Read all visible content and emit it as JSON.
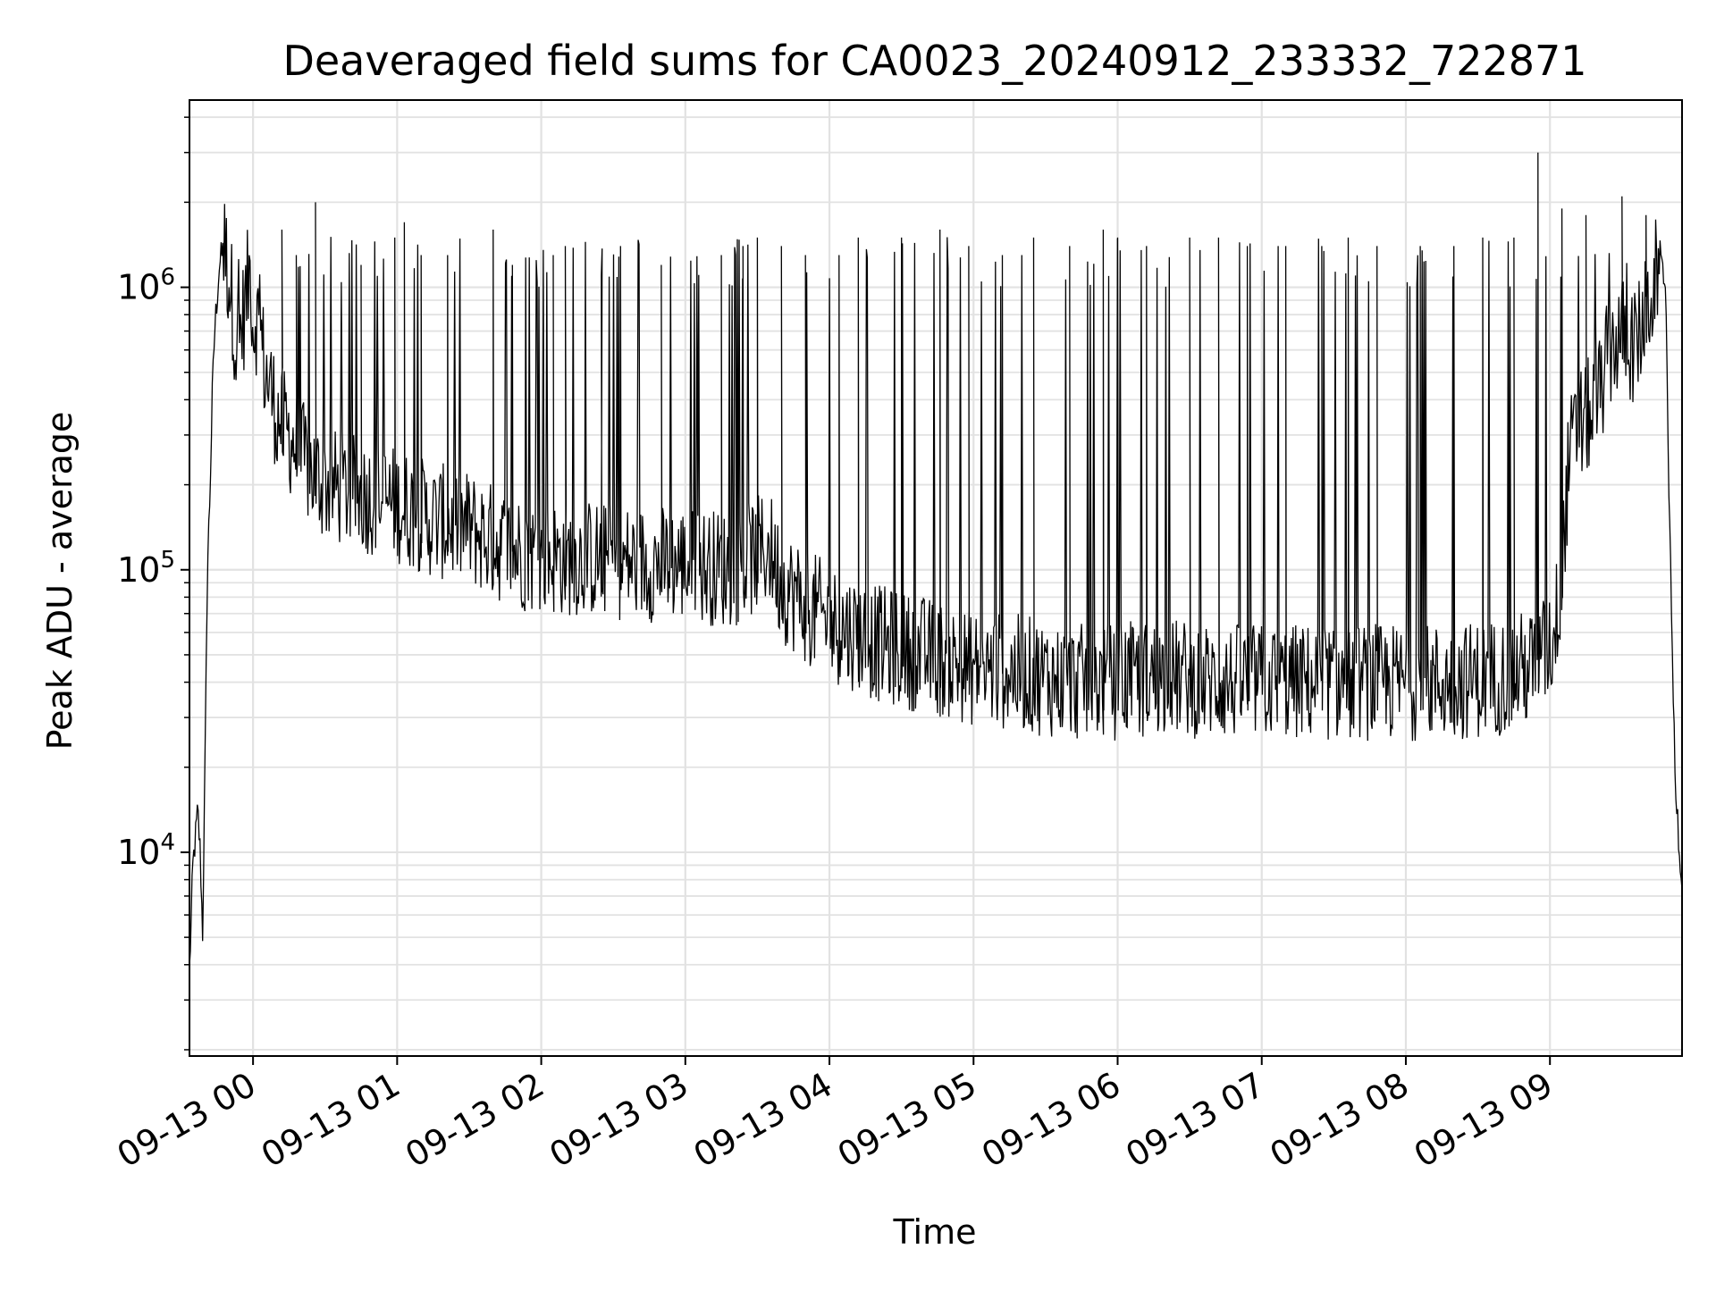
{
  "chart_data": {
    "type": "line",
    "title": "Deaveraged field sums for CA0023_20240912_233332_722871",
    "xlabel": "Time",
    "ylabel": "Peak ADU - average",
    "yscale": "log",
    "x_range": [
      "2024-09-12 23:33:32",
      "2024-09-13 09:55:00"
    ],
    "ylim": [
      1900,
      4600000
    ],
    "x_ticks": [
      "09-13 00",
      "09-13 01",
      "09-13 02",
      "09-13 03",
      "09-13 04",
      "09-13 05",
      "09-13 06",
      "09-13 07",
      "09-13 08",
      "09-13 09"
    ],
    "x_tick_times": [
      "2024-09-13 00:00",
      "2024-09-13 01:00",
      "2024-09-13 02:00",
      "2024-09-13 03:00",
      "2024-09-13 04:00",
      "2024-09-13 05:00",
      "2024-09-13 06:00",
      "2024-09-13 07:00",
      "2024-09-13 08:00",
      "2024-09-13 09:00"
    ],
    "y_ticks": [
      {
        "value": 10000,
        "base": "10",
        "exp": "4"
      },
      {
        "value": 100000,
        "base": "10",
        "exp": "5"
      },
      {
        "value": 1000000,
        "base": "10",
        "exp": "6"
      }
    ],
    "grid": true,
    "line_color": "#000000",
    "series": [
      {
        "x": [
          "2024-09-12 23:33:32",
          "2024-09-12 23:35",
          "2024-09-12 23:37",
          "2024-09-12 23:38",
          "2024-09-12 23:39",
          "2024-09-12 23:40",
          "2024-09-12 23:41",
          "2024-09-12 23:42",
          "2024-09-12 23:43",
          "2024-09-12 23:44",
          "2024-09-12 23:46",
          "2024-09-12 23:48",
          "2024-09-12 23:50",
          "2024-09-12 23:52",
          "2024-09-12 23:53",
          "2024-09-12 23:55",
          "2024-09-12 23:57",
          "2024-09-12 23:59",
          "2024-09-13 00:00",
          "2024-09-13 00:01",
          "2024-09-13 00:03",
          "2024-09-13 00:05",
          "2024-09-13 00:07",
          "2024-09-13 00:10",
          "2024-09-13 00:15",
          "2024-09-13 00:20",
          "2024-09-13 00:25",
          "2024-09-13 00:30",
          "2024-09-13 00:40",
          "2024-09-13 00:50",
          "2024-09-13 01:00",
          "2024-09-13 01:15",
          "2024-09-13 01:30",
          "2024-09-13 01:45",
          "2024-09-13 02:00",
          "2024-09-13 02:20",
          "2024-09-13 02:40",
          "2024-09-13 03:00",
          "2024-09-13 03:20",
          "2024-09-13 03:35",
          "2024-09-13 03:40",
          "2024-09-13 03:50",
          "2024-09-13 04:00",
          "2024-09-13 04:10",
          "2024-09-13 04:20",
          "2024-09-13 04:30",
          "2024-09-13 04:40",
          "2024-09-13 04:50",
          "2024-09-13 05:00",
          "2024-09-13 05:20",
          "2024-09-13 05:40",
          "2024-09-13 06:00",
          "2024-09-13 06:20",
          "2024-09-13 06:40",
          "2024-09-13 07:00",
          "2024-09-13 07:20",
          "2024-09-13 07:40",
          "2024-09-13 08:00",
          "2024-09-13 08:20",
          "2024-09-13 08:40",
          "2024-09-13 08:55",
          "2024-09-13 09:00",
          "2024-09-13 09:02",
          "2024-09-13 09:05",
          "2024-09-13 09:08",
          "2024-09-13 09:12",
          "2024-09-13 09:16",
          "2024-09-13 09:20",
          "2024-09-13 09:25",
          "2024-09-13 09:30",
          "2024-09-13 09:35",
          "2024-09-13 09:40",
          "2024-09-13 09:43",
          "2024-09-13 09:46",
          "2024-09-13 09:48",
          "2024-09-13 09:50",
          "2024-09-13 09:52",
          "2024-09-13 09:54",
          "2024-09-13 09:55"
        ],
        "y": [
          3800,
          9000,
          14000,
          10000,
          5100,
          20000,
          100000,
          180000,
          400000,
          700000,
          1200000,
          1400000,
          1100000,
          800000,
          600000,
          700000,
          900000,
          1200000,
          700000,
          800000,
          700000,
          500000,
          450000,
          350000,
          300000,
          250000,
          220000,
          200000,
          190000,
          180000,
          170000,
          150000,
          140000,
          120000,
          110000,
          110000,
          105000,
          105000,
          100000,
          120000,
          90000,
          75000,
          65000,
          60000,
          55000,
          52000,
          50000,
          47000,
          45000,
          43000,
          40000,
          40000,
          42000,
          40000,
          40000,
          40000,
          40000,
          40000,
          40000,
          42000,
          46000,
          55000,
          60000,
          100000,
          250000,
          320000,
          350000,
          400000,
          600000,
          700000,
          600000,
          800000,
          1000000,
          1300000,
          1100000,
          120000,
          20000,
          10000,
          8000
        ],
        "spike_times": [
          "2024-09-13 00:12",
          "2024-09-13 00:18",
          "2024-09-13 00:26",
          "2024-09-13 00:45",
          "2024-09-13 00:59",
          "2024-09-13 01:03",
          "2024-09-13 01:10",
          "2024-09-13 01:21",
          "2024-09-13 01:40",
          "2024-09-13 01:48",
          "2024-09-13 02:05",
          "2024-09-13 02:10",
          "2024-09-13 02:25",
          "2024-09-13 02:33",
          "2024-09-13 02:50",
          "2024-09-13 03:15",
          "2024-09-13 03:24",
          "2024-09-13 03:30",
          "2024-09-13 03:40",
          "2024-09-13 03:50",
          "2024-09-13 04:04",
          "2024-09-13 04:12",
          "2024-09-13 04:30",
          "2024-09-13 04:46",
          "2024-09-13 04:58",
          "2024-09-13 05:12",
          "2024-09-13 05:25",
          "2024-09-13 05:40",
          "2024-09-13 05:54",
          "2024-09-13 06:00",
          "2024-09-13 06:12",
          "2024-09-13 06:30",
          "2024-09-13 06:42",
          "2024-09-13 06:54",
          "2024-09-13 07:10",
          "2024-09-13 07:25",
          "2024-09-13 07:36",
          "2024-09-13 07:48",
          "2024-09-13 08:06",
          "2024-09-13 08:20",
          "2024-09-13 08:32",
          "2024-09-13 08:45",
          "2024-09-13 08:55",
          "2024-09-13 09:05",
          "2024-09-13 09:15",
          "2024-09-13 09:30",
          "2024-09-13 09:40"
        ],
        "spike_values": [
          1600000,
          1300000,
          2000000,
          1200000,
          1500000,
          1700000,
          1300000,
          1300000,
          1600000,
          1200000,
          1300000,
          1400000,
          1100000,
          1400000,
          1200000,
          1300000,
          1400000,
          1500000,
          1400000,
          1300000,
          1300000,
          1500000,
          1500000,
          1600000,
          1400000,
          1300000,
          1500000,
          1400000,
          1600000,
          1500000,
          1400000,
          1500000,
          1500000,
          1400000,
          1400000,
          1400000,
          1500000,
          1400000,
          1400000,
          1400000,
          1500000,
          1500000,
          3000000,
          1900000,
          1800000,
          2100000,
          1800000
        ]
      }
    ]
  }
}
